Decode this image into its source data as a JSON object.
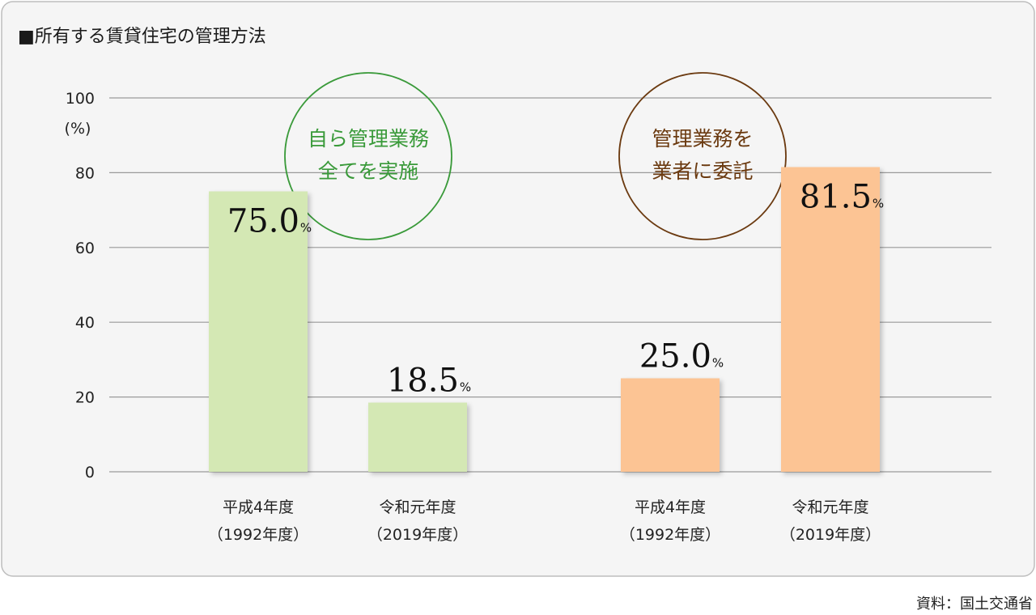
{
  "chart_data": {
    "type": "bar",
    "title": "■所有する賃貸住宅の管理方法",
    "ylabel": "(%)",
    "ylim": [
      0,
      100
    ],
    "yticks": [
      0,
      20,
      40,
      60,
      80,
      100
    ],
    "grid": true,
    "bars": [
      {
        "group": "self",
        "label_line1": "平成4年度",
        "label_line2": "（1992年度）",
        "value": 75.0,
        "value_label": "75.0",
        "color": "#d4e8b4"
      },
      {
        "group": "self",
        "label_line1": "令和元年度",
        "label_line2": "（2019年度）",
        "value": 18.5,
        "value_label": "18.5",
        "color": "#d4e8b4"
      },
      {
        "group": "outsourced",
        "label_line1": "平成4年度",
        "label_line2": "（1992年度）",
        "value": 25.0,
        "value_label": "25.0",
        "color": "#fcc494"
      },
      {
        "group": "outsourced",
        "label_line1": "令和元年度",
        "label_line2": "（2019年度）",
        "value": 81.5,
        "value_label": "81.5",
        "color": "#fcc494"
      }
    ],
    "value_unit": "%",
    "annotations": [
      {
        "group": "self",
        "line1": "自ら管理業務",
        "line2": "全てを実施",
        "color": "#3a9a3a"
      },
      {
        "group": "outsourced",
        "line1": "管理業務を",
        "line2": "業者に委託",
        "color": "#6b3a10"
      }
    ],
    "source": "資料：国土交通省"
  },
  "colors": {
    "frame_border": "#bdbdbd",
    "frame_bg": "#f5f5f5",
    "grid": "#9a9a9a"
  }
}
